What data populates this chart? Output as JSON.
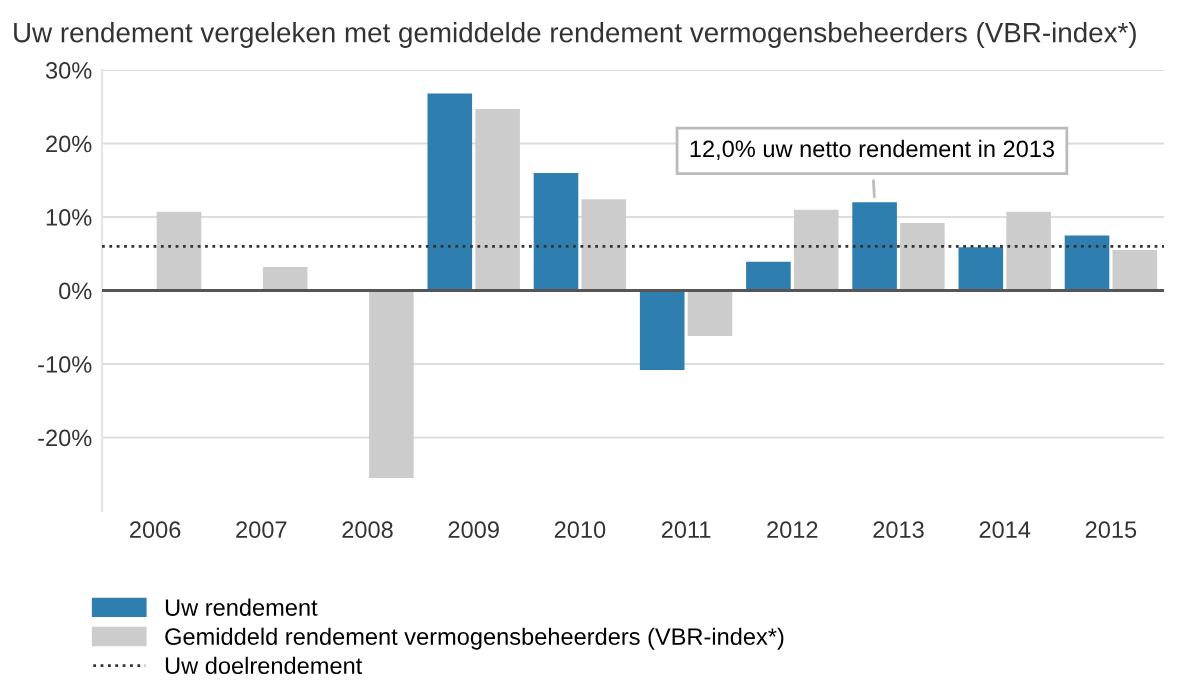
{
  "chart_data": {
    "type": "bar",
    "title": "Uw rendement vergeleken met gemiddelde rendement vermogensbeheerders (VBR-index*)",
    "categories": [
      "2006",
      "2007",
      "2008",
      "2009",
      "2010",
      "2011",
      "2012",
      "2013",
      "2014",
      "2015"
    ],
    "series": [
      {
        "name": "Uw rendement",
        "color": "#2e7fb0",
        "values": [
          null,
          null,
          null,
          26.8,
          16.0,
          -10.8,
          3.9,
          12.0,
          5.9,
          7.5
        ]
      },
      {
        "name": "Gemiddeld rendement vermogensbeheerders (VBR-index*)",
        "color": "#cccccc",
        "values": [
          10.7,
          3.2,
          -25.5,
          24.7,
          12.4,
          -6.2,
          11.0,
          9.2,
          10.7,
          5.5
        ]
      }
    ],
    "ylim": [
      -30,
      30
    ],
    "yticks": [
      {
        "value": -20,
        "label": "-20%"
      },
      {
        "value": -10,
        "label": "-10%"
      },
      {
        "value": 0,
        "label": "0%"
      },
      {
        "value": 10,
        "label": "10%"
      },
      {
        "value": 20,
        "label": "20%"
      },
      {
        "value": 30,
        "label": "30%"
      }
    ],
    "ref_lines": [
      {
        "axis": "y",
        "value": 6,
        "label": "Uw doelrendement",
        "color": "#333333",
        "line_style": "dotted"
      }
    ],
    "annotations": [
      {
        "text": "12,0% uw netto rendement in 2013",
        "x": "2013",
        "y": 12.0
      }
    ],
    "grid": "y",
    "legend": "bottom"
  }
}
